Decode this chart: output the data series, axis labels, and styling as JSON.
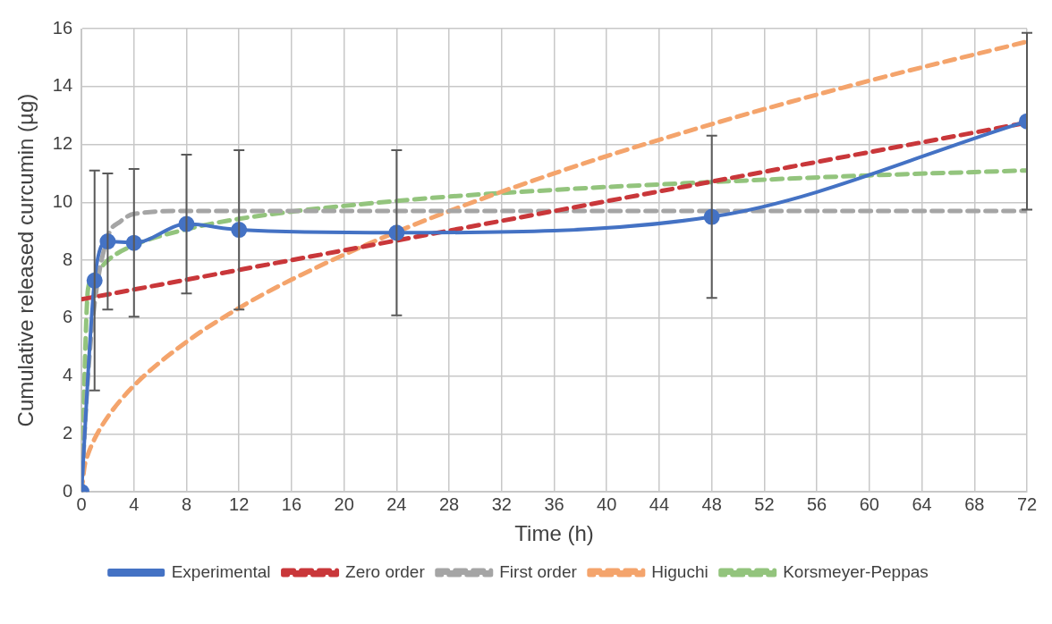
{
  "chart_data": {
    "type": "line",
    "xlabel": "Time (h)",
    "ylabel": "Cumulative released curcumin (µg)",
    "xlim": [
      0,
      72
    ],
    "xticks": [
      0,
      4,
      8,
      12,
      16,
      20,
      24,
      28,
      32,
      36,
      40,
      44,
      48,
      52,
      56,
      60,
      64,
      68,
      72
    ],
    "ylim": [
      0,
      16
    ],
    "yticks": [
      0,
      2,
      4,
      6,
      8,
      10,
      12,
      14,
      16
    ],
    "grid": true,
    "legend": "bottom",
    "series": [
      {
        "name": "Experimental",
        "color": "#4472c4",
        "marker": "circle",
        "line_style": "solid",
        "x": [
          0,
          1,
          2,
          4,
          8,
          12,
          24,
          48,
          72
        ],
        "values": [
          0,
          7.3,
          8.65,
          8.6,
          9.25,
          9.05,
          8.95,
          9.5,
          12.8
        ],
        "errors": [
          null,
          3.8,
          2.35,
          2.55,
          2.4,
          2.75,
          2.85,
          2.8,
          3.05
        ]
      },
      {
        "name": "Zero order",
        "color": "#c9373a",
        "marker": "none",
        "line_style": "dashed",
        "x": [
          0,
          72
        ],
        "values": [
          6.65,
          12.75
        ]
      },
      {
        "name": "First order",
        "color": "#a5a5a5",
        "marker": "none",
        "line_style": "dashed",
        "x": [
          0,
          0.5,
          1,
          2,
          3,
          4,
          8,
          72
        ],
        "values": [
          0,
          4.0,
          6.5,
          8.8,
          9.35,
          9.6,
          9.7,
          9.7
        ]
      },
      {
        "name": "Higuchi",
        "color": "#f4a46c",
        "marker": "none",
        "line_style": "dashed",
        "x": [
          0,
          0.25,
          0.5,
          1,
          2,
          4,
          8,
          12,
          16,
          24,
          36,
          48,
          60,
          72
        ],
        "values": [
          0,
          0.92,
          1.3,
          1.83,
          2.59,
          3.67,
          5.18,
          6.35,
          7.33,
          8.98,
          11.0,
          12.7,
          14.2,
          15.55
        ]
      },
      {
        "name": "Korsmeyer-Peppas",
        "color": "#93c47d",
        "marker": "none",
        "line_style": "dashed",
        "x": [
          0,
          0.5,
          1,
          2,
          4,
          8,
          12,
          24,
          36,
          48,
          60,
          72
        ],
        "values": [
          0,
          7.0,
          7.5,
          8.0,
          8.52,
          9.07,
          9.43,
          10.05,
          10.43,
          10.7,
          10.93,
          11.1
        ]
      }
    ]
  }
}
